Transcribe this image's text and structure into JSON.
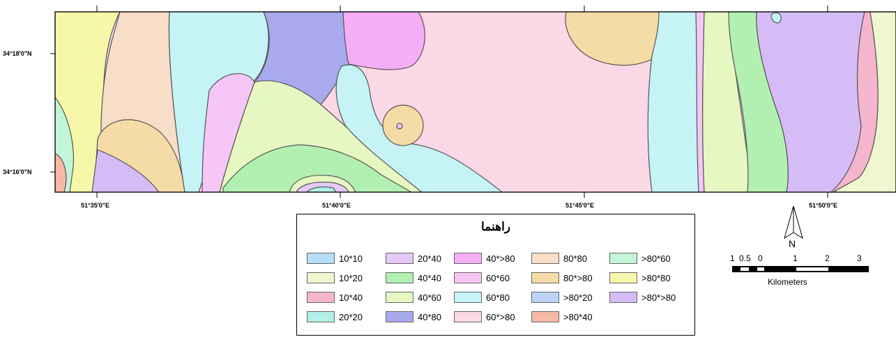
{
  "map": {
    "lat_labels": [
      "34°18'0\"N",
      "34°16'0\"N"
    ],
    "lon_labels": [
      "51°35'0\"E",
      "51°40'0\"E",
      "51°45'0\"E",
      "51°50'0\"E"
    ]
  },
  "legend": {
    "title": "راهنما",
    "items": [
      {
        "label": "10*10",
        "color": "#b5dff7"
      },
      {
        "label": "10*20",
        "color": "#eef7d0"
      },
      {
        "label": "10*40",
        "color": "#f4b5cd"
      },
      {
        "label": "20*20",
        "color": "#b0f0e6"
      },
      {
        "label": "20*40",
        "color": "#e4caf6"
      },
      {
        "label": "40*40",
        "color": "#b2f0b2"
      },
      {
        "label": "40*60",
        "color": "#e6f7c2"
      },
      {
        "label": "40*80",
        "color": "#a9a9ee"
      },
      {
        "label": "40*>80",
        "color": "#f5aef5"
      },
      {
        "label": "60*60",
        "color": "#f6c6f6"
      },
      {
        "label": "60*80",
        "color": "#c5f3f6"
      },
      {
        "label": "60*>80",
        "color": "#fad8e5"
      },
      {
        "label": "80*80",
        "color": "#f8dec8"
      },
      {
        "label": "80*>80",
        "color": "#f5dba6"
      },
      {
        "label": ">80*20",
        "color": "#bdd3f6"
      },
      {
        "label": ">80*40",
        "color": "#f8b8a6"
      },
      {
        "label": ">80*60",
        "color": "#c3f5d7"
      },
      {
        "label": ">80*80",
        "color": "#f7f7a9"
      },
      {
        "label": ">80*>80",
        "color": "#d6bcf6"
      }
    ]
  },
  "north_arrow": {
    "label": "N"
  },
  "scale": {
    "ticks": [
      "1",
      "0.5",
      "0",
      "1",
      "2",
      "3"
    ],
    "unit": "Kilometers"
  }
}
